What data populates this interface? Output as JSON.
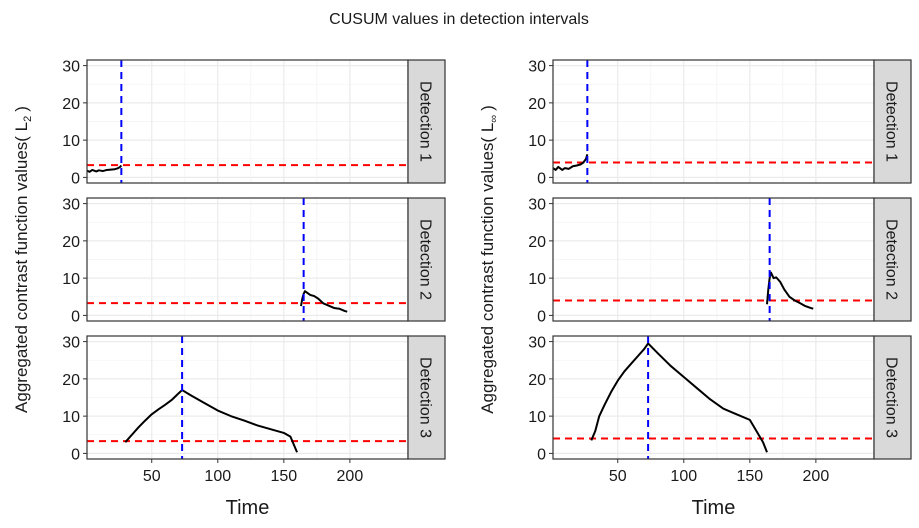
{
  "title": "CUSUM values in detection intervals",
  "chart_data": [
    {
      "type": "line",
      "ylabel": {
        "text": "Aggregated contrast function values( L",
        "sub": "2",
        "end": ")"
      },
      "xlabel": "Time",
      "xlim": [
        1,
        244
      ],
      "xticks": [
        50,
        100,
        150,
        200
      ],
      "ylim": [
        -1.5,
        31.5
      ],
      "yticks": [
        0,
        10,
        20,
        30
      ],
      "grid": true,
      "panels": [
        {
          "strip": "Detection 1",
          "color": "#000000",
          "x": [
            1,
            3,
            5,
            8,
            10,
            13,
            16,
            19,
            22,
            24,
            26,
            27
          ],
          "values": [
            1.8,
            1.5,
            2.0,
            1.6,
            1.9,
            1.7,
            2.0,
            2.1,
            2.2,
            2.4,
            2.8,
            3.2
          ],
          "threshold": 3.3,
          "threshold_color": "#ff0000",
          "changepoint": 27,
          "changepoint_color": "#0000ff"
        },
        {
          "strip": "Detection 2",
          "color": "#000000",
          "x": [
            163,
            164,
            165,
            166,
            168,
            170,
            173,
            176,
            180,
            184,
            188,
            192,
            196,
            198
          ],
          "values": [
            2.5,
            4.5,
            5.8,
            6.5,
            6.0,
            5.5,
            5.2,
            4.5,
            3.2,
            2.6,
            2.0,
            1.8,
            1.2,
            1.0
          ],
          "threshold": 3.3,
          "threshold_color": "#ff0000",
          "changepoint": 165,
          "changepoint_color": "#0000ff"
        },
        {
          "strip": "Detection 3",
          "color": "#000000",
          "x": [
            30,
            35,
            40,
            45,
            50,
            55,
            60,
            65,
            70,
            73,
            80,
            90,
            100,
            110,
            120,
            130,
            140,
            150,
            155,
            158,
            160
          ],
          "values": [
            3,
            5,
            7,
            8.8,
            10.5,
            11.8,
            13,
            14.3,
            16,
            17,
            15.5,
            13.5,
            11.5,
            10,
            8.8,
            7.5,
            6.5,
            5.5,
            4.5,
            2,
            0.3
          ],
          "threshold": 3.3,
          "threshold_color": "#ff0000",
          "changepoint": 73,
          "changepoint_color": "#0000ff"
        }
      ]
    },
    {
      "type": "line",
      "ylabel": {
        "text": "Aggregated contrast function values( L",
        "sub": "∞",
        "end": ")"
      },
      "xlabel": "Time",
      "xlim": [
        1,
        244
      ],
      "xticks": [
        50,
        100,
        150,
        200
      ],
      "ylim": [
        -1.5,
        31.5
      ],
      "yticks": [
        0,
        10,
        20,
        30
      ],
      "grid": true,
      "panels": [
        {
          "strip": "Detection 1",
          "color": "#000000",
          "x": [
            1,
            3,
            5,
            8,
            10,
            13,
            16,
            19,
            22,
            24,
            26,
            27
          ],
          "values": [
            2.5,
            2.0,
            2.8,
            2.0,
            2.5,
            2.3,
            3.0,
            3.2,
            3.5,
            4,
            5,
            6.2
          ],
          "threshold": 4,
          "threshold_color": "#ff0000",
          "changepoint": 27,
          "changepoint_color": "#0000ff"
        },
        {
          "strip": "Detection 2",
          "color": "#000000",
          "x": [
            163,
            164,
            165,
            166,
            168,
            170,
            173,
            176,
            180,
            184,
            188,
            192,
            196,
            198
          ],
          "values": [
            3,
            7,
            10,
            11.5,
            10,
            10.2,
            9,
            7,
            5,
            4,
            3.3,
            2.5,
            2,
            1.8
          ],
          "threshold": 4,
          "threshold_color": "#ff0000",
          "changepoint": 165,
          "changepoint_color": "#0000ff"
        },
        {
          "strip": "Detection 3",
          "color": "#000000",
          "x": [
            30,
            33,
            36,
            40,
            45,
            50,
            55,
            60,
            65,
            70,
            73,
            80,
            90,
            100,
            110,
            120,
            130,
            140,
            150,
            155,
            160,
            163
          ],
          "values": [
            3.5,
            6,
            10,
            13,
            16.5,
            19.5,
            22,
            24,
            26,
            28,
            29.5,
            27,
            23.5,
            20.5,
            17.5,
            14.5,
            12,
            10.5,
            9,
            6,
            3,
            0.3
          ],
          "threshold": 4,
          "threshold_color": "#ff0000",
          "changepoint": 73,
          "changepoint_color": "#0000ff"
        }
      ]
    }
  ]
}
